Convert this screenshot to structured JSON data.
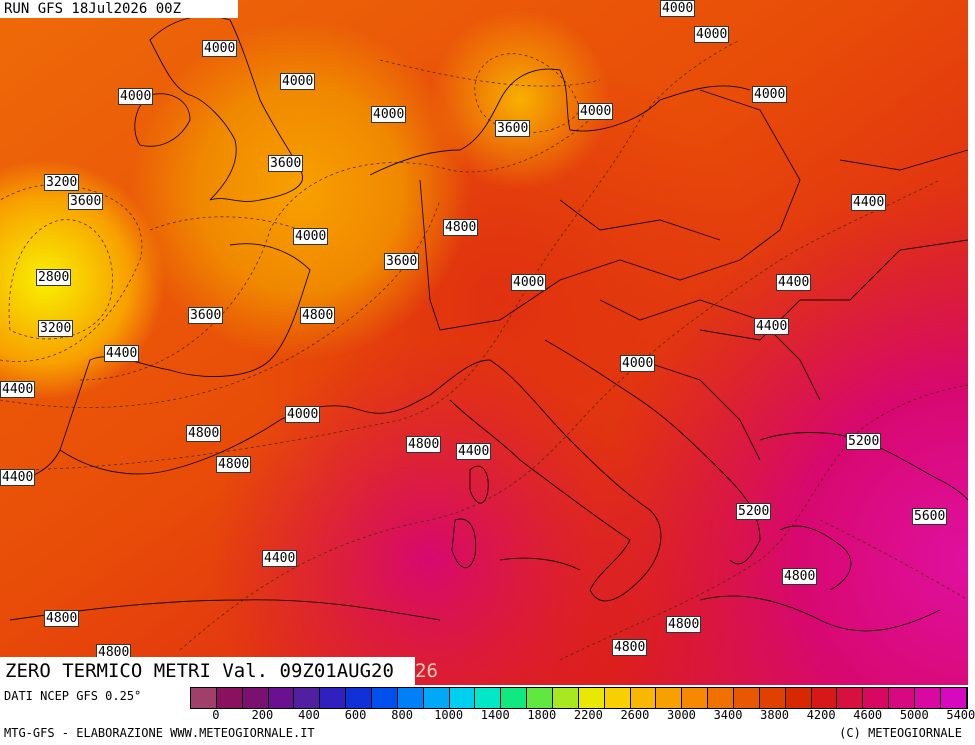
{
  "run_label": "RUN GFS 18Jul2026 00Z",
  "title": "ZERO TERMICO METRI Val. 09Z01AUG20",
  "title_tail": "26",
  "source": "DATI NCEP GFS 0.25°",
  "credit_left": "MTG-GFS - ELABORAZIONE WWW.METEOGIORNALE.IT",
  "credit_right": "(C) METEOGIORNALE",
  "legend_colors": [
    "#a0406a",
    "#8a1060",
    "#7a1070",
    "#6a1090",
    "#5020a0",
    "#3020c0",
    "#1030d8",
    "#0050f0",
    "#0080f8",
    "#00a8f8",
    "#00d0f0",
    "#00e8c8",
    "#10e880",
    "#60e840",
    "#a8e820",
    "#e8e800",
    "#f8d000",
    "#f8b800",
    "#f8a000",
    "#f88800",
    "#f07000",
    "#e85800",
    "#e04000",
    "#d82800",
    "#d81818",
    "#d81040",
    "#d80860",
    "#d80880",
    "#d808a0",
    "#d808c0"
  ],
  "legend_ticks": [
    "0",
    "200",
    "400",
    "600",
    "800",
    "1000",
    "1400",
    "1800",
    "2200",
    "2600",
    "3000",
    "3400",
    "3800",
    "4200",
    "4600",
    "5000",
    "5400"
  ],
  "contour_labels": [
    {
      "text": "4000"
    },
    {
      "text": "4000"
    },
    {
      "text": "4000"
    },
    {
      "text": "4000"
    },
    {
      "text": "4000"
    },
    {
      "text": "4000"
    },
    {
      "text": "3600"
    },
    {
      "text": "4000"
    },
    {
      "text": "3600"
    },
    {
      "text": "3200"
    },
    {
      "text": "3600"
    },
    {
      "text": "4400"
    },
    {
      "text": "4800"
    },
    {
      "text": "2800"
    },
    {
      "text": "4000"
    },
    {
      "text": "4400"
    },
    {
      "text": "3600"
    },
    {
      "text": "4000"
    },
    {
      "text": "4400"
    },
    {
      "text": "3200"
    },
    {
      "text": "3600"
    },
    {
      "text": "4800"
    },
    {
      "text": "4400"
    },
    {
      "text": "4000"
    },
    {
      "text": "4400"
    },
    {
      "text": "4000"
    },
    {
      "text": "4800"
    },
    {
      "text": "4400"
    },
    {
      "text": "5200"
    },
    {
      "text": "4400"
    },
    {
      "text": "4800"
    },
    {
      "text": "5600"
    },
    {
      "text": "4800"
    },
    {
      "text": "5200"
    },
    {
      "text": "4800"
    },
    {
      "text": "4400"
    },
    {
      "text": "4800"
    },
    {
      "text": "4800"
    },
    {
      "text": "4800"
    },
    {
      "text": "4800"
    },
    {
      "text": "4000"
    }
  ]
}
